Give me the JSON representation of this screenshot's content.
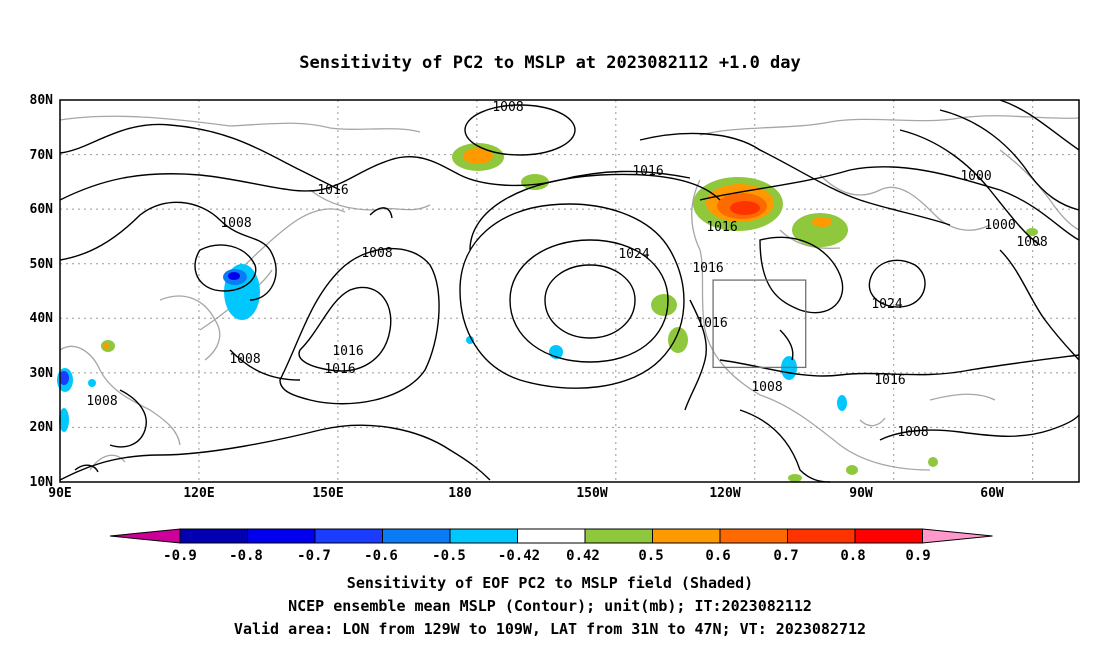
{
  "title": "Sensitivity of PC2 to MSLP at 2023082112 +1.0 day",
  "lat_labels": [
    "80N",
    "70N",
    "60N",
    "50N",
    "40N",
    "30N",
    "20N",
    "10N"
  ],
  "lon_labels": [
    "90E",
    "120E",
    "150E",
    "180",
    "150W",
    "120W",
    "90W",
    "60W"
  ],
  "isobar_labels": [
    "1008",
    "1016",
    "1016",
    "1008",
    "1008",
    "1016",
    "1024",
    "1016",
    "1016",
    "1000",
    "1000",
    "1008",
    "1016",
    "1016",
    "1016",
    "1024",
    "1008",
    "1016",
    "1008",
    "1008",
    "1008"
  ],
  "colorbar": {
    "labels": [
      "-0.9",
      "-0.8",
      "-0.7",
      "-0.6",
      "-0.5",
      "-0.42",
      "0.42",
      "0.5",
      "0.6",
      "0.7",
      "0.8",
      "0.9"
    ],
    "colors": [
      "#cc0099",
      "#0000b0",
      "#0000ee",
      "#1a3cff",
      "#0a7af5",
      "#00c8ff",
      "#ffffff",
      "#8fc83c",
      "#ff9900",
      "#ff6a00",
      "#ff3300",
      "#ff0000",
      "#ff99cc"
    ]
  },
  "captions": {
    "line1": "Sensitivity of EOF PC2 to MSLP field (Shaded)",
    "line2": "NCEP ensemble mean MSLP (Contour); unit(mb); IT:2023082112",
    "line3": "Valid area: LON from 129W to 109W, LAT from 31N to 47N; VT: 2023082712"
  },
  "valid_area": {
    "lon": [
      -129,
      -109
    ],
    "lat": [
      31,
      47
    ]
  },
  "map_extent": {
    "lon": [
      90,
      310
    ],
    "lat": [
      10,
      80
    ]
  }
}
